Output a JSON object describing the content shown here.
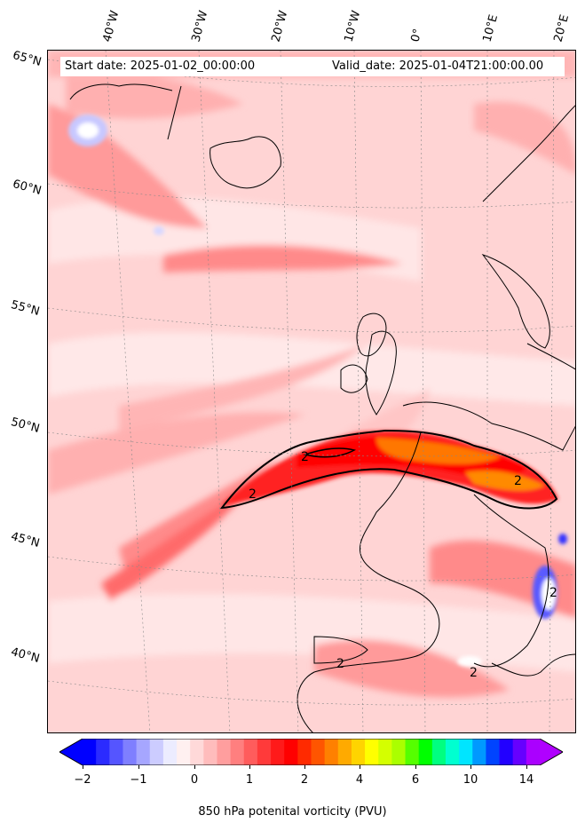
{
  "header": {
    "start_date": "Start date: 2025-01-02_00:00:00",
    "valid_date": "Valid_date: 2025-01-04T21:00:00.00"
  },
  "longitude_labels": [
    "40°W",
    "30°W",
    "20°W",
    "10°W",
    "0°",
    "10°E",
    "20°E"
  ],
  "latitude_labels": [
    "65°N",
    "60°N",
    "55°N",
    "50°N",
    "45°N",
    "40°N"
  ],
  "contour_labels": [
    "2",
    "2",
    "2",
    "2",
    "2",
    "2"
  ],
  "colorbar": {
    "label": "850 hPa potenital vorticity (PVU)",
    "ticks": [
      "−2",
      "−1",
      "0",
      "1",
      "2",
      "4",
      "6",
      "10",
      "14"
    ],
    "colors": [
      "#0000ff",
      "#2b2bff",
      "#5555ff",
      "#7f7fff",
      "#a6a6ff",
      "#ccccff",
      "#ececff",
      "#fff0f0",
      "#ffd9d9",
      "#ffbcbc",
      "#ff9e9e",
      "#ff7f7f",
      "#ff5c5c",
      "#ff3a3a",
      "#ff1a1a",
      "#ff0000",
      "#ff2a00",
      "#ff5500",
      "#ff8000",
      "#ffaa00",
      "#ffd400",
      "#ffff00",
      "#d4ff00",
      "#aaff00",
      "#55ff00",
      "#00ff00",
      "#00ff80",
      "#00ffd0",
      "#00e5ff",
      "#0099ff",
      "#0044ff",
      "#2200ff",
      "#6600ff",
      "#aa00ff"
    ],
    "extend_min_color": "#0000ff",
    "extend_max_color": "#b000ff"
  }
}
